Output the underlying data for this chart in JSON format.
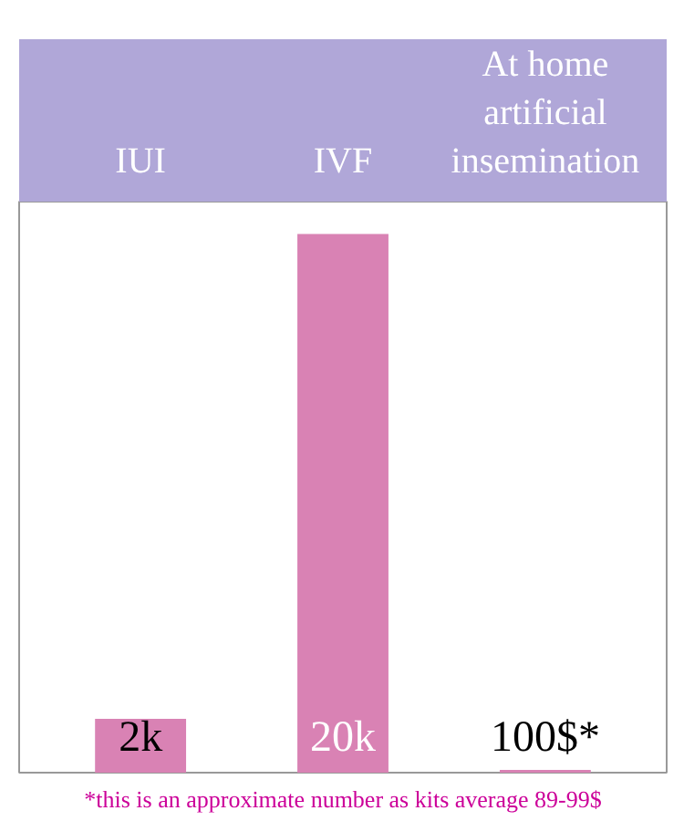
{
  "chart_data": {
    "type": "bar",
    "categories": [
      "IUI",
      "IVF",
      "At home artificial insemination"
    ],
    "values": [
      2000,
      20000,
      100
    ],
    "value_labels": [
      "2k",
      "20k",
      "100$*"
    ],
    "color": "#d982b4",
    "annotations": [
      "*this is an approximate number as kits average 89-99$"
    ]
  }
}
